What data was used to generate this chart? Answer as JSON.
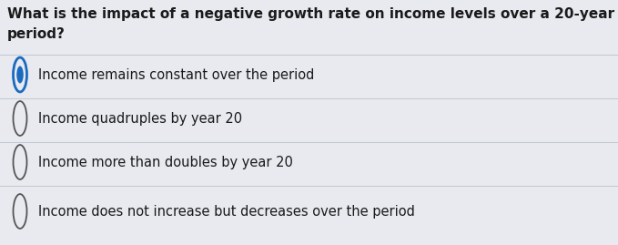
{
  "question_line1": "What is the impact of a negative growth rate on income levels over a 20-year",
  "question_line2": "period?",
  "options": [
    "Income remains constant over the period",
    "Income quadruples by year 20",
    "Income more than doubles by year 20",
    "Income does not increase but decreases over the period"
  ],
  "selected_index": 0,
  "bg_color": "#e8eaf0",
  "text_color": "#1a1a1a",
  "question_fontsize": 11.0,
  "option_fontsize": 10.5,
  "selected_ring_color": "#1a6bbf",
  "selected_fill_color": "#1a6bbf",
  "unselected_ring_color": "#555555",
  "divider_color": "#c0c8d0",
  "divider_linewidth": 0.7
}
